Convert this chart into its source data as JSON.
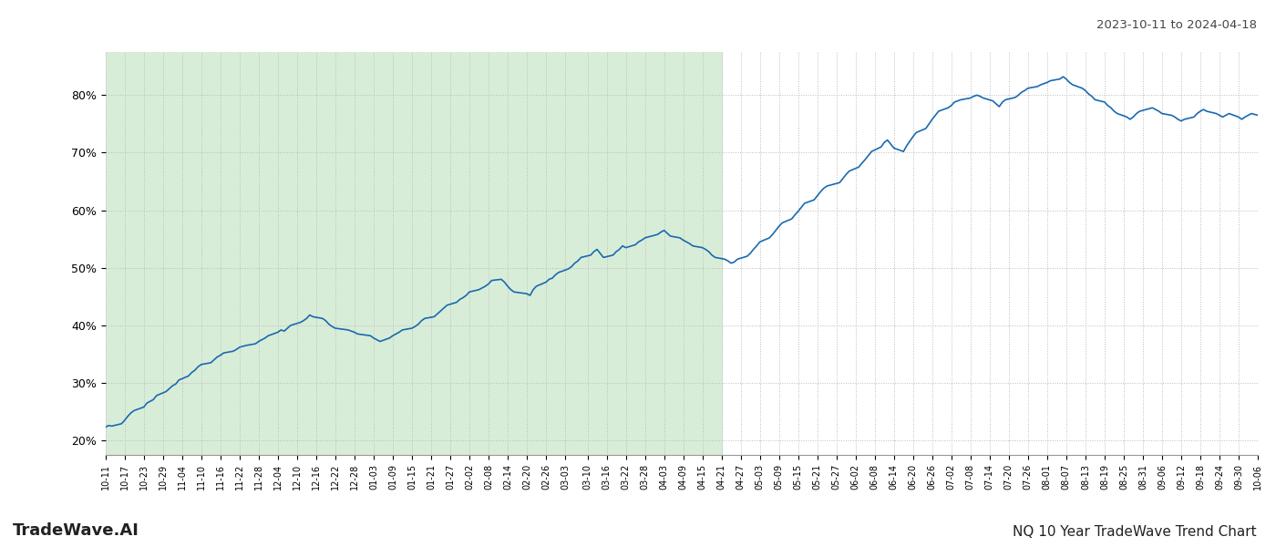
{
  "title_top_right": "2023-10-11 to 2024-04-18",
  "label_bottom_left": "TradeWave.AI",
  "label_bottom_right": "NQ 10 Year TradeWave Trend Chart",
  "line_color": "#1a6ab0",
  "line_width": 1.2,
  "shaded_region_color": "#d8edd8",
  "shaded_start": "2023-10-11",
  "shaded_end": "2024-04-21",
  "ylim": [
    0.175,
    0.875
  ],
  "yticks": [
    0.2,
    0.3,
    0.4,
    0.5,
    0.6,
    0.7,
    0.8
  ],
  "background_color": "#ffffff",
  "grid_color": "#bbbbbb",
  "grid_linestyle": ":",
  "x_tick_dates": [
    "2023-10-11",
    "2023-10-17",
    "2023-10-23",
    "2023-10-29",
    "2023-11-04",
    "2023-11-10",
    "2023-11-16",
    "2023-11-22",
    "2023-11-28",
    "2023-12-04",
    "2023-12-10",
    "2023-12-16",
    "2023-12-22",
    "2023-12-28",
    "2024-01-03",
    "2024-01-09",
    "2024-01-15",
    "2024-01-21",
    "2024-01-27",
    "2024-02-02",
    "2024-02-08",
    "2024-02-14",
    "2024-02-20",
    "2024-02-26",
    "2024-03-03",
    "2024-03-10",
    "2024-03-16",
    "2024-03-22",
    "2024-03-28",
    "2024-04-03",
    "2024-04-09",
    "2024-04-15",
    "2024-04-21",
    "2024-04-27",
    "2024-05-03",
    "2024-05-09",
    "2024-05-15",
    "2024-05-21",
    "2024-05-27",
    "2024-06-02",
    "2024-06-08",
    "2024-06-14",
    "2024-06-20",
    "2024-06-26",
    "2024-07-02",
    "2024-07-08",
    "2024-07-14",
    "2024-07-20",
    "2024-07-26",
    "2024-08-01",
    "2024-08-07",
    "2024-08-13",
    "2024-08-19",
    "2024-08-25",
    "2024-08-31",
    "2024-09-06",
    "2024-09-12",
    "2024-09-18",
    "2024-09-24",
    "2024-09-30",
    "2024-10-06"
  ],
  "data_points": [
    [
      "2023-10-11",
      0.223
    ],
    [
      "2023-10-12",
      0.226
    ],
    [
      "2023-10-13",
      0.225
    ],
    [
      "2023-10-16",
      0.229
    ],
    [
      "2023-10-17",
      0.235
    ],
    [
      "2023-10-18",
      0.242
    ],
    [
      "2023-10-19",
      0.248
    ],
    [
      "2023-10-20",
      0.252
    ],
    [
      "2023-10-23",
      0.258
    ],
    [
      "2023-10-24",
      0.265
    ],
    [
      "2023-10-25",
      0.268
    ],
    [
      "2023-10-26",
      0.271
    ],
    [
      "2023-10-27",
      0.278
    ],
    [
      "2023-10-30",
      0.285
    ],
    [
      "2023-10-31",
      0.29
    ],
    [
      "2023-11-01",
      0.295
    ],
    [
      "2023-11-02",
      0.298
    ],
    [
      "2023-11-03",
      0.305
    ],
    [
      "2023-11-06",
      0.312
    ],
    [
      "2023-11-07",
      0.318
    ],
    [
      "2023-11-08",
      0.322
    ],
    [
      "2023-11-09",
      0.328
    ],
    [
      "2023-11-10",
      0.332
    ],
    [
      "2023-11-13",
      0.335
    ],
    [
      "2023-11-14",
      0.34
    ],
    [
      "2023-11-15",
      0.345
    ],
    [
      "2023-11-16",
      0.348
    ],
    [
      "2023-11-17",
      0.352
    ],
    [
      "2023-11-20",
      0.355
    ],
    [
      "2023-11-21",
      0.358
    ],
    [
      "2023-11-22",
      0.362
    ],
    [
      "2023-11-24",
      0.365
    ],
    [
      "2023-11-27",
      0.368
    ],
    [
      "2023-11-28",
      0.372
    ],
    [
      "2023-11-29",
      0.375
    ],
    [
      "2023-11-30",
      0.378
    ],
    [
      "2023-12-01",
      0.382
    ],
    [
      "2023-12-04",
      0.388
    ],
    [
      "2023-12-05",
      0.392
    ],
    [
      "2023-12-06",
      0.39
    ],
    [
      "2023-12-07",
      0.395
    ],
    [
      "2023-12-08",
      0.4
    ],
    [
      "2023-12-11",
      0.405
    ],
    [
      "2023-12-12",
      0.408
    ],
    [
      "2023-12-13",
      0.412
    ],
    [
      "2023-12-14",
      0.418
    ],
    [
      "2023-12-15",
      0.415
    ],
    [
      "2023-12-18",
      0.412
    ],
    [
      "2023-12-19",
      0.408
    ],
    [
      "2023-12-20",
      0.402
    ],
    [
      "2023-12-21",
      0.398
    ],
    [
      "2023-12-22",
      0.395
    ],
    [
      "2023-12-26",
      0.392
    ],
    [
      "2023-12-27",
      0.39
    ],
    [
      "2023-12-28",
      0.388
    ],
    [
      "2023-12-29",
      0.385
    ],
    [
      "2024-01-02",
      0.382
    ],
    [
      "2024-01-03",
      0.378
    ],
    [
      "2024-01-04",
      0.375
    ],
    [
      "2024-01-05",
      0.372
    ],
    [
      "2024-01-08",
      0.378
    ],
    [
      "2024-01-09",
      0.382
    ],
    [
      "2024-01-10",
      0.385
    ],
    [
      "2024-01-11",
      0.388
    ],
    [
      "2024-01-12",
      0.392
    ],
    [
      "2024-01-15",
      0.395
    ],
    [
      "2024-01-16",
      0.398
    ],
    [
      "2024-01-17",
      0.402
    ],
    [
      "2024-01-18",
      0.408
    ],
    [
      "2024-01-19",
      0.412
    ],
    [
      "2024-01-22",
      0.415
    ],
    [
      "2024-01-23",
      0.42
    ],
    [
      "2024-01-24",
      0.425
    ],
    [
      "2024-01-25",
      0.43
    ],
    [
      "2024-01-26",
      0.435
    ],
    [
      "2024-01-29",
      0.44
    ],
    [
      "2024-01-30",
      0.445
    ],
    [
      "2024-01-31",
      0.448
    ],
    [
      "2024-02-01",
      0.452
    ],
    [
      "2024-02-02",
      0.458
    ],
    [
      "2024-02-05",
      0.462
    ],
    [
      "2024-02-06",
      0.465
    ],
    [
      "2024-02-07",
      0.468
    ],
    [
      "2024-02-08",
      0.472
    ],
    [
      "2024-02-09",
      0.478
    ],
    [
      "2024-02-12",
      0.48
    ],
    [
      "2024-02-13",
      0.475
    ],
    [
      "2024-02-14",
      0.468
    ],
    [
      "2024-02-15",
      0.462
    ],
    [
      "2024-02-16",
      0.458
    ],
    [
      "2024-02-20",
      0.455
    ],
    [
      "2024-02-21",
      0.452
    ],
    [
      "2024-02-22",
      0.462
    ],
    [
      "2024-02-23",
      0.468
    ],
    [
      "2024-02-26",
      0.475
    ],
    [
      "2024-02-27",
      0.48
    ],
    [
      "2024-02-28",
      0.482
    ],
    [
      "2024-02-29",
      0.488
    ],
    [
      "2024-03-01",
      0.492
    ],
    [
      "2024-03-04",
      0.498
    ],
    [
      "2024-03-05",
      0.502
    ],
    [
      "2024-03-06",
      0.508
    ],
    [
      "2024-03-07",
      0.512
    ],
    [
      "2024-03-08",
      0.518
    ],
    [
      "2024-03-11",
      0.522
    ],
    [
      "2024-03-12",
      0.528
    ],
    [
      "2024-03-13",
      0.532
    ],
    [
      "2024-03-14",
      0.525
    ],
    [
      "2024-03-15",
      0.518
    ],
    [
      "2024-03-18",
      0.522
    ],
    [
      "2024-03-19",
      0.528
    ],
    [
      "2024-03-20",
      0.532
    ],
    [
      "2024-03-21",
      0.538
    ],
    [
      "2024-03-22",
      0.535
    ],
    [
      "2024-03-25",
      0.54
    ],
    [
      "2024-03-26",
      0.545
    ],
    [
      "2024-03-27",
      0.548
    ],
    [
      "2024-03-28",
      0.552
    ],
    [
      "2024-04-01",
      0.558
    ],
    [
      "2024-04-02",
      0.562
    ],
    [
      "2024-04-03",
      0.565
    ],
    [
      "2024-04-04",
      0.56
    ],
    [
      "2024-04-05",
      0.555
    ],
    [
      "2024-04-08",
      0.552
    ],
    [
      "2024-04-09",
      0.548
    ],
    [
      "2024-04-10",
      0.545
    ],
    [
      "2024-04-11",
      0.542
    ],
    [
      "2024-04-12",
      0.538
    ],
    [
      "2024-04-15",
      0.535
    ],
    [
      "2024-04-16",
      0.532
    ],
    [
      "2024-04-17",
      0.528
    ],
    [
      "2024-04-18",
      0.522
    ],
    [
      "2024-04-19",
      0.518
    ],
    [
      "2024-04-22",
      0.515
    ],
    [
      "2024-04-23",
      0.512
    ],
    [
      "2024-04-24",
      0.508
    ],
    [
      "2024-04-25",
      0.51
    ],
    [
      "2024-04-26",
      0.515
    ],
    [
      "2024-04-29",
      0.52
    ],
    [
      "2024-04-30",
      0.525
    ],
    [
      "2024-05-01",
      0.532
    ],
    [
      "2024-05-02",
      0.538
    ],
    [
      "2024-05-03",
      0.545
    ],
    [
      "2024-05-06",
      0.552
    ],
    [
      "2024-05-07",
      0.558
    ],
    [
      "2024-05-08",
      0.565
    ],
    [
      "2024-05-09",
      0.572
    ],
    [
      "2024-05-10",
      0.578
    ],
    [
      "2024-05-13",
      0.585
    ],
    [
      "2024-05-14",
      0.592
    ],
    [
      "2024-05-15",
      0.598
    ],
    [
      "2024-05-16",
      0.605
    ],
    [
      "2024-05-17",
      0.612
    ],
    [
      "2024-05-20",
      0.618
    ],
    [
      "2024-05-21",
      0.625
    ],
    [
      "2024-05-22",
      0.632
    ],
    [
      "2024-05-23",
      0.638
    ],
    [
      "2024-05-24",
      0.642
    ],
    [
      "2024-05-28",
      0.648
    ],
    [
      "2024-05-29",
      0.655
    ],
    [
      "2024-05-30",
      0.662
    ],
    [
      "2024-05-31",
      0.668
    ],
    [
      "2024-06-03",
      0.675
    ],
    [
      "2024-06-04",
      0.682
    ],
    [
      "2024-06-05",
      0.688
    ],
    [
      "2024-06-06",
      0.695
    ],
    [
      "2024-06-07",
      0.702
    ],
    [
      "2024-06-10",
      0.71
    ],
    [
      "2024-06-11",
      0.718
    ],
    [
      "2024-06-12",
      0.722
    ],
    [
      "2024-06-13",
      0.715
    ],
    [
      "2024-06-14",
      0.708
    ],
    [
      "2024-06-17",
      0.702
    ],
    [
      "2024-06-18",
      0.712
    ],
    [
      "2024-06-19",
      0.72
    ],
    [
      "2024-06-20",
      0.728
    ],
    [
      "2024-06-21",
      0.735
    ],
    [
      "2024-06-24",
      0.742
    ],
    [
      "2024-06-25",
      0.75
    ],
    [
      "2024-06-26",
      0.758
    ],
    [
      "2024-06-27",
      0.765
    ],
    [
      "2024-06-28",
      0.772
    ],
    [
      "2024-07-01",
      0.778
    ],
    [
      "2024-07-02",
      0.782
    ],
    [
      "2024-07-03",
      0.788
    ],
    [
      "2024-07-05",
      0.792
    ],
    [
      "2024-07-08",
      0.795
    ],
    [
      "2024-07-09",
      0.798
    ],
    [
      "2024-07-10",
      0.8
    ],
    [
      "2024-07-11",
      0.798
    ],
    [
      "2024-07-12",
      0.795
    ],
    [
      "2024-07-15",
      0.79
    ],
    [
      "2024-07-16",
      0.785
    ],
    [
      "2024-07-17",
      0.78
    ],
    [
      "2024-07-18",
      0.788
    ],
    [
      "2024-07-19",
      0.792
    ],
    [
      "2024-07-22",
      0.796
    ],
    [
      "2024-07-23",
      0.8
    ],
    [
      "2024-07-24",
      0.805
    ],
    [
      "2024-07-25",
      0.808
    ],
    [
      "2024-07-26",
      0.812
    ],
    [
      "2024-07-29",
      0.815
    ],
    [
      "2024-07-30",
      0.818
    ],
    [
      "2024-07-31",
      0.82
    ],
    [
      "2024-08-01",
      0.822
    ],
    [
      "2024-08-02",
      0.825
    ],
    [
      "2024-08-05",
      0.828
    ],
    [
      "2024-08-06",
      0.832
    ],
    [
      "2024-08-07",
      0.828
    ],
    [
      "2024-08-08",
      0.822
    ],
    [
      "2024-08-09",
      0.818
    ],
    [
      "2024-08-12",
      0.812
    ],
    [
      "2024-08-13",
      0.808
    ],
    [
      "2024-08-14",
      0.802
    ],
    [
      "2024-08-15",
      0.798
    ],
    [
      "2024-08-16",
      0.792
    ],
    [
      "2024-08-19",
      0.788
    ],
    [
      "2024-08-20",
      0.782
    ],
    [
      "2024-08-21",
      0.778
    ],
    [
      "2024-08-22",
      0.772
    ],
    [
      "2024-08-23",
      0.768
    ],
    [
      "2024-08-26",
      0.762
    ],
    [
      "2024-08-27",
      0.758
    ],
    [
      "2024-08-28",
      0.762
    ],
    [
      "2024-08-29",
      0.768
    ],
    [
      "2024-08-30",
      0.772
    ],
    [
      "2024-09-03",
      0.778
    ],
    [
      "2024-09-04",
      0.775
    ],
    [
      "2024-09-05",
      0.772
    ],
    [
      "2024-09-06",
      0.768
    ],
    [
      "2024-09-09",
      0.765
    ],
    [
      "2024-09-10",
      0.762
    ],
    [
      "2024-09-11",
      0.758
    ],
    [
      "2024-09-12",
      0.755
    ],
    [
      "2024-09-13",
      0.758
    ],
    [
      "2024-09-16",
      0.762
    ],
    [
      "2024-09-17",
      0.768
    ],
    [
      "2024-09-18",
      0.772
    ],
    [
      "2024-09-19",
      0.775
    ],
    [
      "2024-09-20",
      0.772
    ],
    [
      "2024-09-23",
      0.768
    ],
    [
      "2024-09-24",
      0.765
    ],
    [
      "2024-09-25",
      0.762
    ],
    [
      "2024-09-26",
      0.765
    ],
    [
      "2024-09-27",
      0.768
    ],
    [
      "2024-09-30",
      0.762
    ],
    [
      "2024-10-01",
      0.758
    ],
    [
      "2024-10-02",
      0.762
    ],
    [
      "2024-10-03",
      0.765
    ],
    [
      "2024-10-04",
      0.768
    ],
    [
      "2024-10-06",
      0.765
    ]
  ]
}
